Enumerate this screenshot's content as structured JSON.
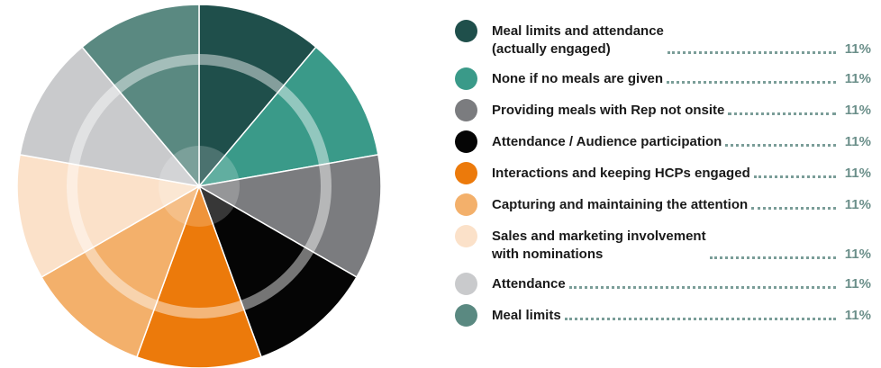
{
  "chart_data": {
    "type": "pie",
    "categories": [
      "Meal limits and attendance\n(actually engaged)",
      "None if no meals are given",
      "Providing meals with Rep not onsite",
      "Attendance / Audience participation",
      "Interactions and keeping HCPs engaged",
      "Capturing and maintaining the attention",
      "Sales and marketing involvement\nwith nominations",
      "Attendance",
      "Meal limits"
    ],
    "values": [
      11,
      11,
      11,
      11,
      11,
      11,
      11,
      11,
      11
    ],
    "value_labels": [
      "11%",
      "11%",
      "11%",
      "11%",
      "11%",
      "11%",
      "11%",
      "11%",
      "11%"
    ],
    "colors": [
      "#1f4f4b",
      "#3a9a89",
      "#7b7c7f",
      "#050505",
      "#ec7a0b",
      "#f3b06b",
      "#fbe1c9",
      "#c9cacc",
      "#5a8981"
    ],
    "legend": "right"
  }
}
